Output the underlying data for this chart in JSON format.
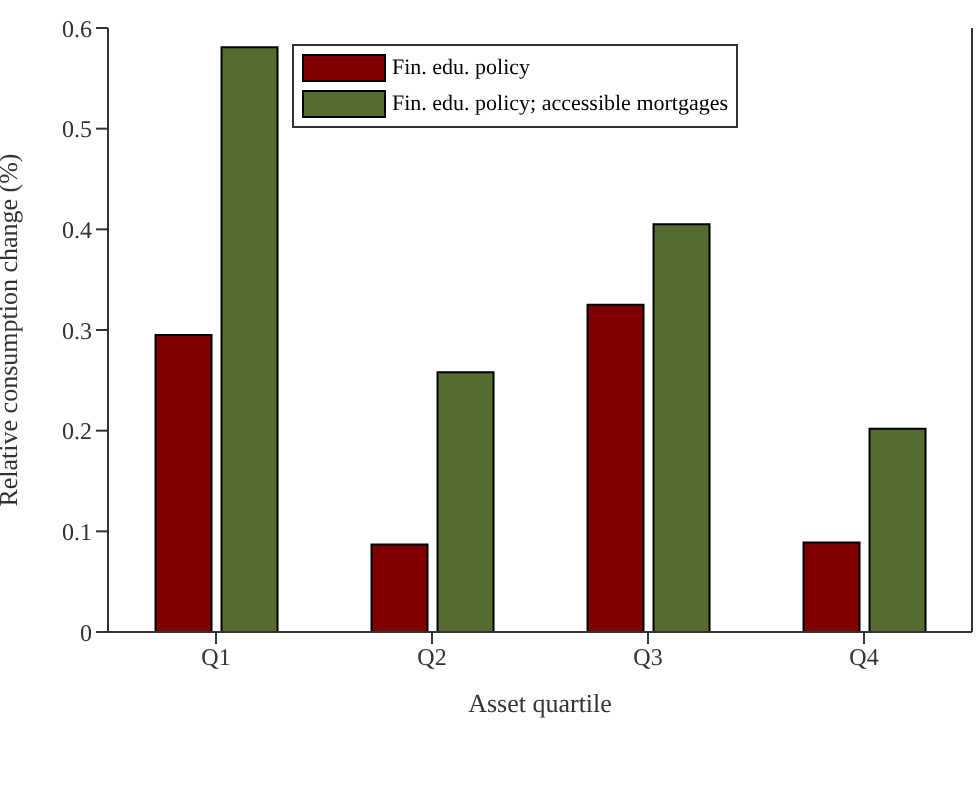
{
  "chart_data": {
    "type": "bar",
    "xlabel": "Asset quartile",
    "ylabel": "Relative consumption change (%)",
    "categories": [
      "Q1",
      "Q2",
      "Q3",
      "Q4"
    ],
    "series": [
      {
        "name": "Fin. edu. policy",
        "color": "#7f0000",
        "values": [
          0.295,
          0.087,
          0.325,
          0.089
        ]
      },
      {
        "name": "Fin. edu. policy; accessible mortgages",
        "color": "#556b2f",
        "values": [
          0.581,
          0.258,
          0.405,
          0.202
        ]
      }
    ],
    "ylim": [
      0,
      0.6
    ],
    "yticks": [
      0,
      0.1,
      0.2,
      0.3,
      0.4,
      0.5,
      0.6
    ],
    "legend": "top",
    "grid": false
  }
}
